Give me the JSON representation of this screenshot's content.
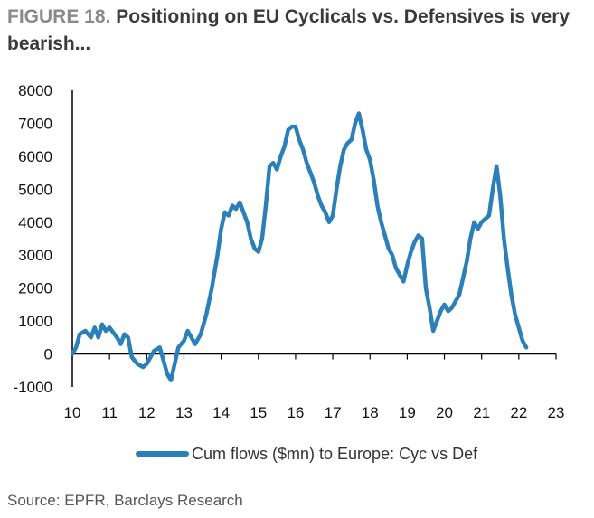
{
  "header": {
    "figure_label": "FIGURE 18.",
    "title": "Positioning on EU Cyclicals vs. Defensives is very bearish..."
  },
  "footer": {
    "source": "Source: EPFR, Barclays Research"
  },
  "colors": {
    "series": "#2b80b9",
    "axis": "#000000"
  },
  "chart_data": {
    "type": "line",
    "title": "Positioning on EU Cyclicals vs. Defensives is very bearish...",
    "xlabel": "",
    "ylabel": "",
    "xlim": [
      10,
      23
    ],
    "ylim": [
      -1000,
      8000
    ],
    "x_ticks": [
      "10",
      "11",
      "12",
      "13",
      "14",
      "15",
      "16",
      "17",
      "18",
      "19",
      "20",
      "21",
      "22",
      "23"
    ],
    "y_ticks": [
      "8000",
      "7000",
      "6000",
      "5000",
      "4000",
      "3000",
      "2000",
      "1000",
      "0",
      "-1000"
    ],
    "grid": false,
    "legend_position": "bottom",
    "series": [
      {
        "name": "Cum flows ($mn) to Europe: Cyc vs Def",
        "points": [
          [
            10.0,
            0
          ],
          [
            10.1,
            200
          ],
          [
            10.2,
            600
          ],
          [
            10.35,
            700
          ],
          [
            10.5,
            500
          ],
          [
            10.6,
            800
          ],
          [
            10.7,
            500
          ],
          [
            10.8,
            900
          ],
          [
            10.9,
            700
          ],
          [
            11.0,
            800
          ],
          [
            11.1,
            650
          ],
          [
            11.2,
            500
          ],
          [
            11.3,
            300
          ],
          [
            11.4,
            600
          ],
          [
            11.5,
            500
          ],
          [
            11.6,
            -100
          ],
          [
            11.75,
            -300
          ],
          [
            11.9,
            -400
          ],
          [
            12.0,
            -300
          ],
          [
            12.1,
            -100
          ],
          [
            12.2,
            100
          ],
          [
            12.35,
            200
          ],
          [
            12.45,
            -200
          ],
          [
            12.55,
            -600
          ],
          [
            12.65,
            -800
          ],
          [
            12.75,
            -300
          ],
          [
            12.85,
            200
          ],
          [
            13.0,
            400
          ],
          [
            13.1,
            700
          ],
          [
            13.2,
            500
          ],
          [
            13.3,
            300
          ],
          [
            13.45,
            600
          ],
          [
            13.6,
            1200
          ],
          [
            13.75,
            2000
          ],
          [
            13.9,
            3000
          ],
          [
            14.0,
            3800
          ],
          [
            14.1,
            4300
          ],
          [
            14.2,
            4200
          ],
          [
            14.3,
            4500
          ],
          [
            14.4,
            4400
          ],
          [
            14.5,
            4600
          ],
          [
            14.6,
            4300
          ],
          [
            14.7,
            4000
          ],
          [
            14.8,
            3500
          ],
          [
            14.9,
            3200
          ],
          [
            15.0,
            3100
          ],
          [
            15.1,
            3500
          ],
          [
            15.2,
            4500
          ],
          [
            15.3,
            5700
          ],
          [
            15.4,
            5800
          ],
          [
            15.5,
            5600
          ],
          [
            15.6,
            6000
          ],
          [
            15.7,
            6300
          ],
          [
            15.8,
            6800
          ],
          [
            15.9,
            6900
          ],
          [
            16.0,
            6900
          ],
          [
            16.1,
            6500
          ],
          [
            16.2,
            6200
          ],
          [
            16.3,
            5800
          ],
          [
            16.4,
            5500
          ],
          [
            16.5,
            5200
          ],
          [
            16.6,
            4800
          ],
          [
            16.7,
            4500
          ],
          [
            16.8,
            4300
          ],
          [
            16.9,
            4000
          ],
          [
            17.0,
            4200
          ],
          [
            17.1,
            5000
          ],
          [
            17.2,
            5700
          ],
          [
            17.3,
            6200
          ],
          [
            17.4,
            6400
          ],
          [
            17.5,
            6500
          ],
          [
            17.6,
            7000
          ],
          [
            17.7,
            7300
          ],
          [
            17.8,
            6800
          ],
          [
            17.9,
            6200
          ],
          [
            18.0,
            5900
          ],
          [
            18.1,
            5300
          ],
          [
            18.2,
            4500
          ],
          [
            18.3,
            4000
          ],
          [
            18.4,
            3600
          ],
          [
            18.5,
            3200
          ],
          [
            18.6,
            3000
          ],
          [
            18.7,
            2600
          ],
          [
            18.8,
            2400
          ],
          [
            18.9,
            2200
          ],
          [
            19.0,
            2700
          ],
          [
            19.1,
            3100
          ],
          [
            19.2,
            3400
          ],
          [
            19.3,
            3600
          ],
          [
            19.4,
            3500
          ],
          [
            19.5,
            2000
          ],
          [
            19.6,
            1400
          ],
          [
            19.7,
            700
          ],
          [
            19.8,
            1000
          ],
          [
            19.9,
            1300
          ],
          [
            20.0,
            1500
          ],
          [
            20.1,
            1300
          ],
          [
            20.2,
            1400
          ],
          [
            20.3,
            1600
          ],
          [
            20.4,
            1800
          ],
          [
            20.5,
            2300
          ],
          [
            20.6,
            2800
          ],
          [
            20.7,
            3500
          ],
          [
            20.8,
            4000
          ],
          [
            20.9,
            3800
          ],
          [
            21.0,
            4000
          ],
          [
            21.1,
            4100
          ],
          [
            21.2,
            4200
          ],
          [
            21.3,
            5000
          ],
          [
            21.4,
            5700
          ],
          [
            21.5,
            4800
          ],
          [
            21.6,
            3500
          ],
          [
            21.7,
            2600
          ],
          [
            21.8,
            1800
          ],
          [
            21.9,
            1200
          ],
          [
            22.0,
            800
          ],
          [
            22.1,
            400
          ],
          [
            22.2,
            200
          ]
        ]
      }
    ]
  }
}
